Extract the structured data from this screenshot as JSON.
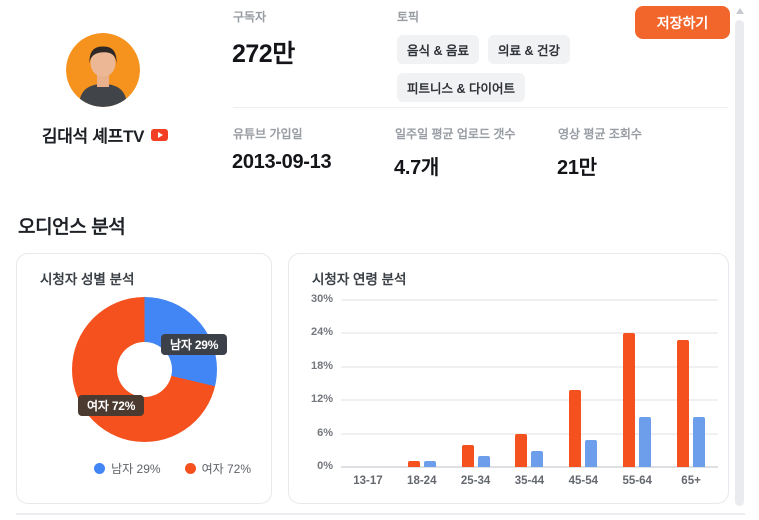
{
  "colors": {
    "accent_orange": "#f2662b",
    "chart_orange": "#f4511e",
    "chart_blue": "#4285f4",
    "bar_blue": "#6d9eeb"
  },
  "profile": {
    "channel_name": "김대석 셰프TV"
  },
  "header": {
    "subscribers_label": "구독자",
    "subscribers_value": "272만",
    "topics_label": "토픽",
    "topics": [
      "음식 & 음료",
      "의료 & 건강",
      "피트니스 & 다이어트"
    ],
    "save_label": "저장하기",
    "join_label": "유튜브 가입일",
    "join_value": "2013-09-13",
    "uploads_label": "일주일 평균 업로드 갯수",
    "uploads_value": "4.7개",
    "views_label": "영상 평균 조회수",
    "views_value": "21만"
  },
  "audience": {
    "section_title": "오디언스 분석"
  },
  "chart_data": [
    {
      "type": "pie",
      "donut": true,
      "title": "시청자 성별 분석",
      "labels": [
        "남자",
        "여자"
      ],
      "values": [
        29,
        72
      ],
      "colors": [
        "#4285f4",
        "#f4511e"
      ],
      "callouts": [
        "남자 29%",
        "여자 72%"
      ],
      "legend": [
        "남자 29%",
        "여자 72%"
      ],
      "legend_position": "bottom-right"
    },
    {
      "type": "bar",
      "title": "시청자 연령 분석",
      "categories": [
        "13-17",
        "18-24",
        "25-34",
        "35-44",
        "45-54",
        "55-64",
        "65+"
      ],
      "series": [
        {
          "name": "여자",
          "color": "#f4511e",
          "values": [
            0,
            1,
            3.9,
            5.9,
            13.9,
            24,
            22.8
          ]
        },
        {
          "name": "남자",
          "color": "#6d9eeb",
          "values": [
            0,
            1,
            2,
            2.9,
            4.9,
            9,
            9
          ]
        }
      ],
      "yticks": [
        0,
        6,
        12,
        18,
        24,
        30
      ],
      "ytick_labels": [
        "0%",
        "6%",
        "12%",
        "18%",
        "24%",
        "30%"
      ],
      "ylim": [
        0,
        30
      ],
      "grid": true
    }
  ]
}
